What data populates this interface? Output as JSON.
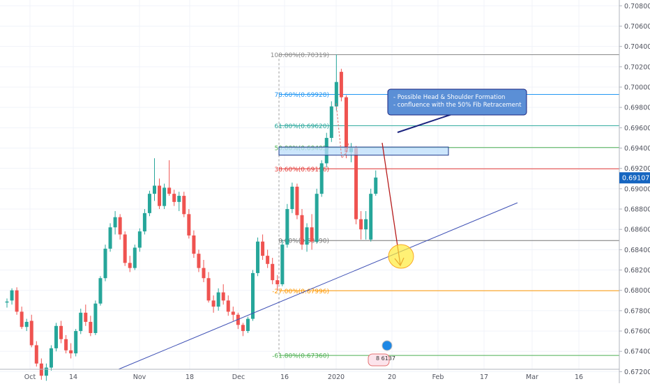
{
  "chart_data": {
    "type": "candlestick",
    "x_tick_labels": [
      "Oct",
      "14",
      "Nov",
      "18",
      "Dec",
      "16",
      "2020",
      "20",
      "Feb",
      "17",
      "Mar",
      "16"
    ],
    "y_tick_labels": [
      "0.70800",
      "0.70600",
      "0.70400",
      "0.70200",
      "0.70000",
      "0.69800",
      "0.69600",
      "0.69400",
      "0.69200",
      "0.69000",
      "0.68800",
      "0.68600",
      "0.68400",
      "0.68200",
      "0.68000",
      "0.67800",
      "0.67600",
      "0.67400",
      "0.67200"
    ],
    "ylim": [
      0.671,
      0.7085
    ],
    "last_price": "0.69107",
    "candles": [
      [
        0.6788,
        0.6792,
        0.6783,
        0.6789
      ],
      [
        0.679,
        0.6802,
        0.6786,
        0.68
      ],
      [
        0.68,
        0.6803,
        0.6776,
        0.6779
      ],
      [
        0.6779,
        0.6784,
        0.6762,
        0.6764
      ],
      [
        0.6764,
        0.6772,
        0.676,
        0.6769
      ],
      [
        0.677,
        0.6776,
        0.6744,
        0.6746
      ],
      [
        0.6746,
        0.675,
        0.6725,
        0.6728
      ],
      [
        0.6728,
        0.6733,
        0.6712,
        0.6716
      ],
      [
        0.6716,
        0.6728,
        0.6711,
        0.6724
      ],
      [
        0.6724,
        0.6746,
        0.6721,
        0.6743
      ],
      [
        0.6743,
        0.6768,
        0.674,
        0.6765
      ],
      [
        0.6765,
        0.677,
        0.6748,
        0.6752
      ],
      [
        0.6752,
        0.6756,
        0.6738,
        0.6741
      ],
      [
        0.6741,
        0.6748,
        0.6733,
        0.6738
      ],
      [
        0.6738,
        0.6762,
        0.6735,
        0.676
      ],
      [
        0.676,
        0.6782,
        0.6757,
        0.6778
      ],
      [
        0.6778,
        0.6786,
        0.6765,
        0.6769
      ],
      [
        0.6769,
        0.6775,
        0.6755,
        0.6758
      ],
      [
        0.6758,
        0.679,
        0.6756,
        0.6787
      ],
      [
        0.6787,
        0.6814,
        0.6785,
        0.6812
      ],
      [
        0.6812,
        0.6845,
        0.6809,
        0.6841
      ],
      [
        0.6841,
        0.6866,
        0.6838,
        0.6862
      ],
      [
        0.6862,
        0.6878,
        0.6855,
        0.6872
      ],
      [
        0.6872,
        0.6875,
        0.685,
        0.6855
      ],
      [
        0.6855,
        0.6858,
        0.6824,
        0.6827
      ],
      [
        0.6827,
        0.6834,
        0.6818,
        0.6822
      ],
      [
        0.6822,
        0.6845,
        0.682,
        0.6842
      ],
      [
        0.6842,
        0.6861,
        0.6838,
        0.6858
      ],
      [
        0.6858,
        0.688,
        0.6855,
        0.6876
      ],
      [
        0.6876,
        0.6898,
        0.6873,
        0.6895
      ],
      [
        0.6895,
        0.693,
        0.6888,
        0.6903
      ],
      [
        0.6903,
        0.691,
        0.688,
        0.6883
      ],
      [
        0.6883,
        0.6905,
        0.688,
        0.6901
      ],
      [
        0.6901,
        0.6928,
        0.6893,
        0.6895
      ],
      [
        0.6895,
        0.6899,
        0.6883,
        0.6887
      ],
      [
        0.6887,
        0.6897,
        0.6878,
        0.6893
      ],
      [
        0.6893,
        0.6897,
        0.6872,
        0.6875
      ],
      [
        0.6875,
        0.688,
        0.6851,
        0.6854
      ],
      [
        0.6854,
        0.6859,
        0.6832,
        0.6836
      ],
      [
        0.6836,
        0.684,
        0.6818,
        0.6822
      ],
      [
        0.6822,
        0.683,
        0.6808,
        0.6812
      ],
      [
        0.6812,
        0.6818,
        0.6788,
        0.679
      ],
      [
        0.679,
        0.6795,
        0.6778,
        0.6784
      ],
      [
        0.6784,
        0.6802,
        0.678,
        0.6798
      ],
      [
        0.6798,
        0.6806,
        0.6786,
        0.679
      ],
      [
        0.679,
        0.6795,
        0.6775,
        0.6779
      ],
      [
        0.6779,
        0.6784,
        0.677,
        0.6776
      ],
      [
        0.6776,
        0.6778,
        0.6762,
        0.6766
      ],
      [
        0.6766,
        0.6768,
        0.6755,
        0.676
      ],
      [
        0.676,
        0.6774,
        0.6758,
        0.6772
      ],
      [
        0.6772,
        0.682,
        0.677,
        0.6817
      ],
      [
        0.6817,
        0.6852,
        0.6814,
        0.6848
      ],
      [
        0.6848,
        0.6855,
        0.683,
        0.6834
      ],
      [
        0.6834,
        0.684,
        0.6822,
        0.6826
      ],
      [
        0.6826,
        0.6832,
        0.6806,
        0.681
      ],
      [
        0.681,
        0.6815,
        0.68,
        0.6806
      ],
      [
        0.6806,
        0.685,
        0.6804,
        0.6845
      ],
      [
        0.6845,
        0.6885,
        0.6842,
        0.688
      ],
      [
        0.688,
        0.6906,
        0.6876,
        0.6902
      ],
      [
        0.6902,
        0.6905,
        0.687,
        0.6874
      ],
      [
        0.6874,
        0.688,
        0.684,
        0.6845
      ],
      [
        0.6845,
        0.6866,
        0.6838,
        0.6862
      ],
      [
        0.6862,
        0.6875,
        0.684,
        0.6848
      ],
      [
        0.6848,
        0.69,
        0.6846,
        0.6895
      ],
      [
        0.6895,
        0.6928,
        0.6892,
        0.6925
      ],
      [
        0.6925,
        0.6955,
        0.6921,
        0.695
      ],
      [
        0.695,
        0.6986,
        0.6946,
        0.6981
      ],
      [
        0.6981,
        0.7032,
        0.6977,
        0.7005
      ],
      [
        0.7015,
        0.7018,
        0.6986,
        0.699
      ],
      [
        0.699,
        0.6992,
        0.693,
        0.6936
      ],
      [
        0.6936,
        0.6945,
        0.6926,
        0.694
      ],
      [
        0.694,
        0.6942,
        0.6865,
        0.687
      ],
      [
        0.687,
        0.6878,
        0.685,
        0.686
      ],
      [
        0.686,
        0.6878,
        0.685,
        0.687
      ],
      [
        0.685,
        0.69,
        0.6848,
        0.6895
      ],
      [
        0.6895,
        0.6918,
        0.6893,
        0.6911
      ]
    ],
    "fib_levels": [
      {
        "label": "100.00%(0.70319)",
        "value": 0.70319,
        "color": "#888888"
      },
      {
        "label": "78.60%(0.69928)",
        "value": 0.69928,
        "color": "#2196f3"
      },
      {
        "label": "61.80%(0.69620)",
        "value": 0.6962,
        "color": "#26a69a"
      },
      {
        "label": "50.00%(0.69405)",
        "value": 0.69405,
        "color": "#4caf50"
      },
      {
        "label": "38.60%(0.69196)",
        "value": 0.69196,
        "color": "#e53935"
      },
      {
        "label": "0.00%(0.68490)",
        "value": 0.6849,
        "color": "#777777"
      },
      {
        "label": "-27.00%(0.67996)",
        "value": 0.67996,
        "color": "#ff9800"
      },
      {
        "label": "-61.80%(0.67360)",
        "value": 0.6736,
        "color": "#4caf50"
      }
    ],
    "annotation": {
      "lines": [
        "- Possible Head & Shoulder Formation",
        "- confluence with the 50% Fib Retracement"
      ]
    },
    "event_marker": "8 6137"
  },
  "colors": {
    "up": "#26a69a",
    "down": "#ef5350",
    "trendline": "#3f51b5",
    "arrow": "#b71c1c",
    "zone_fill": "#bbdefb",
    "zone_border": "#1e3a8a",
    "callout_fill": "#5b8fd6",
    "highlight": "#ffeb3b",
    "price_tag": "#1565c0"
  }
}
